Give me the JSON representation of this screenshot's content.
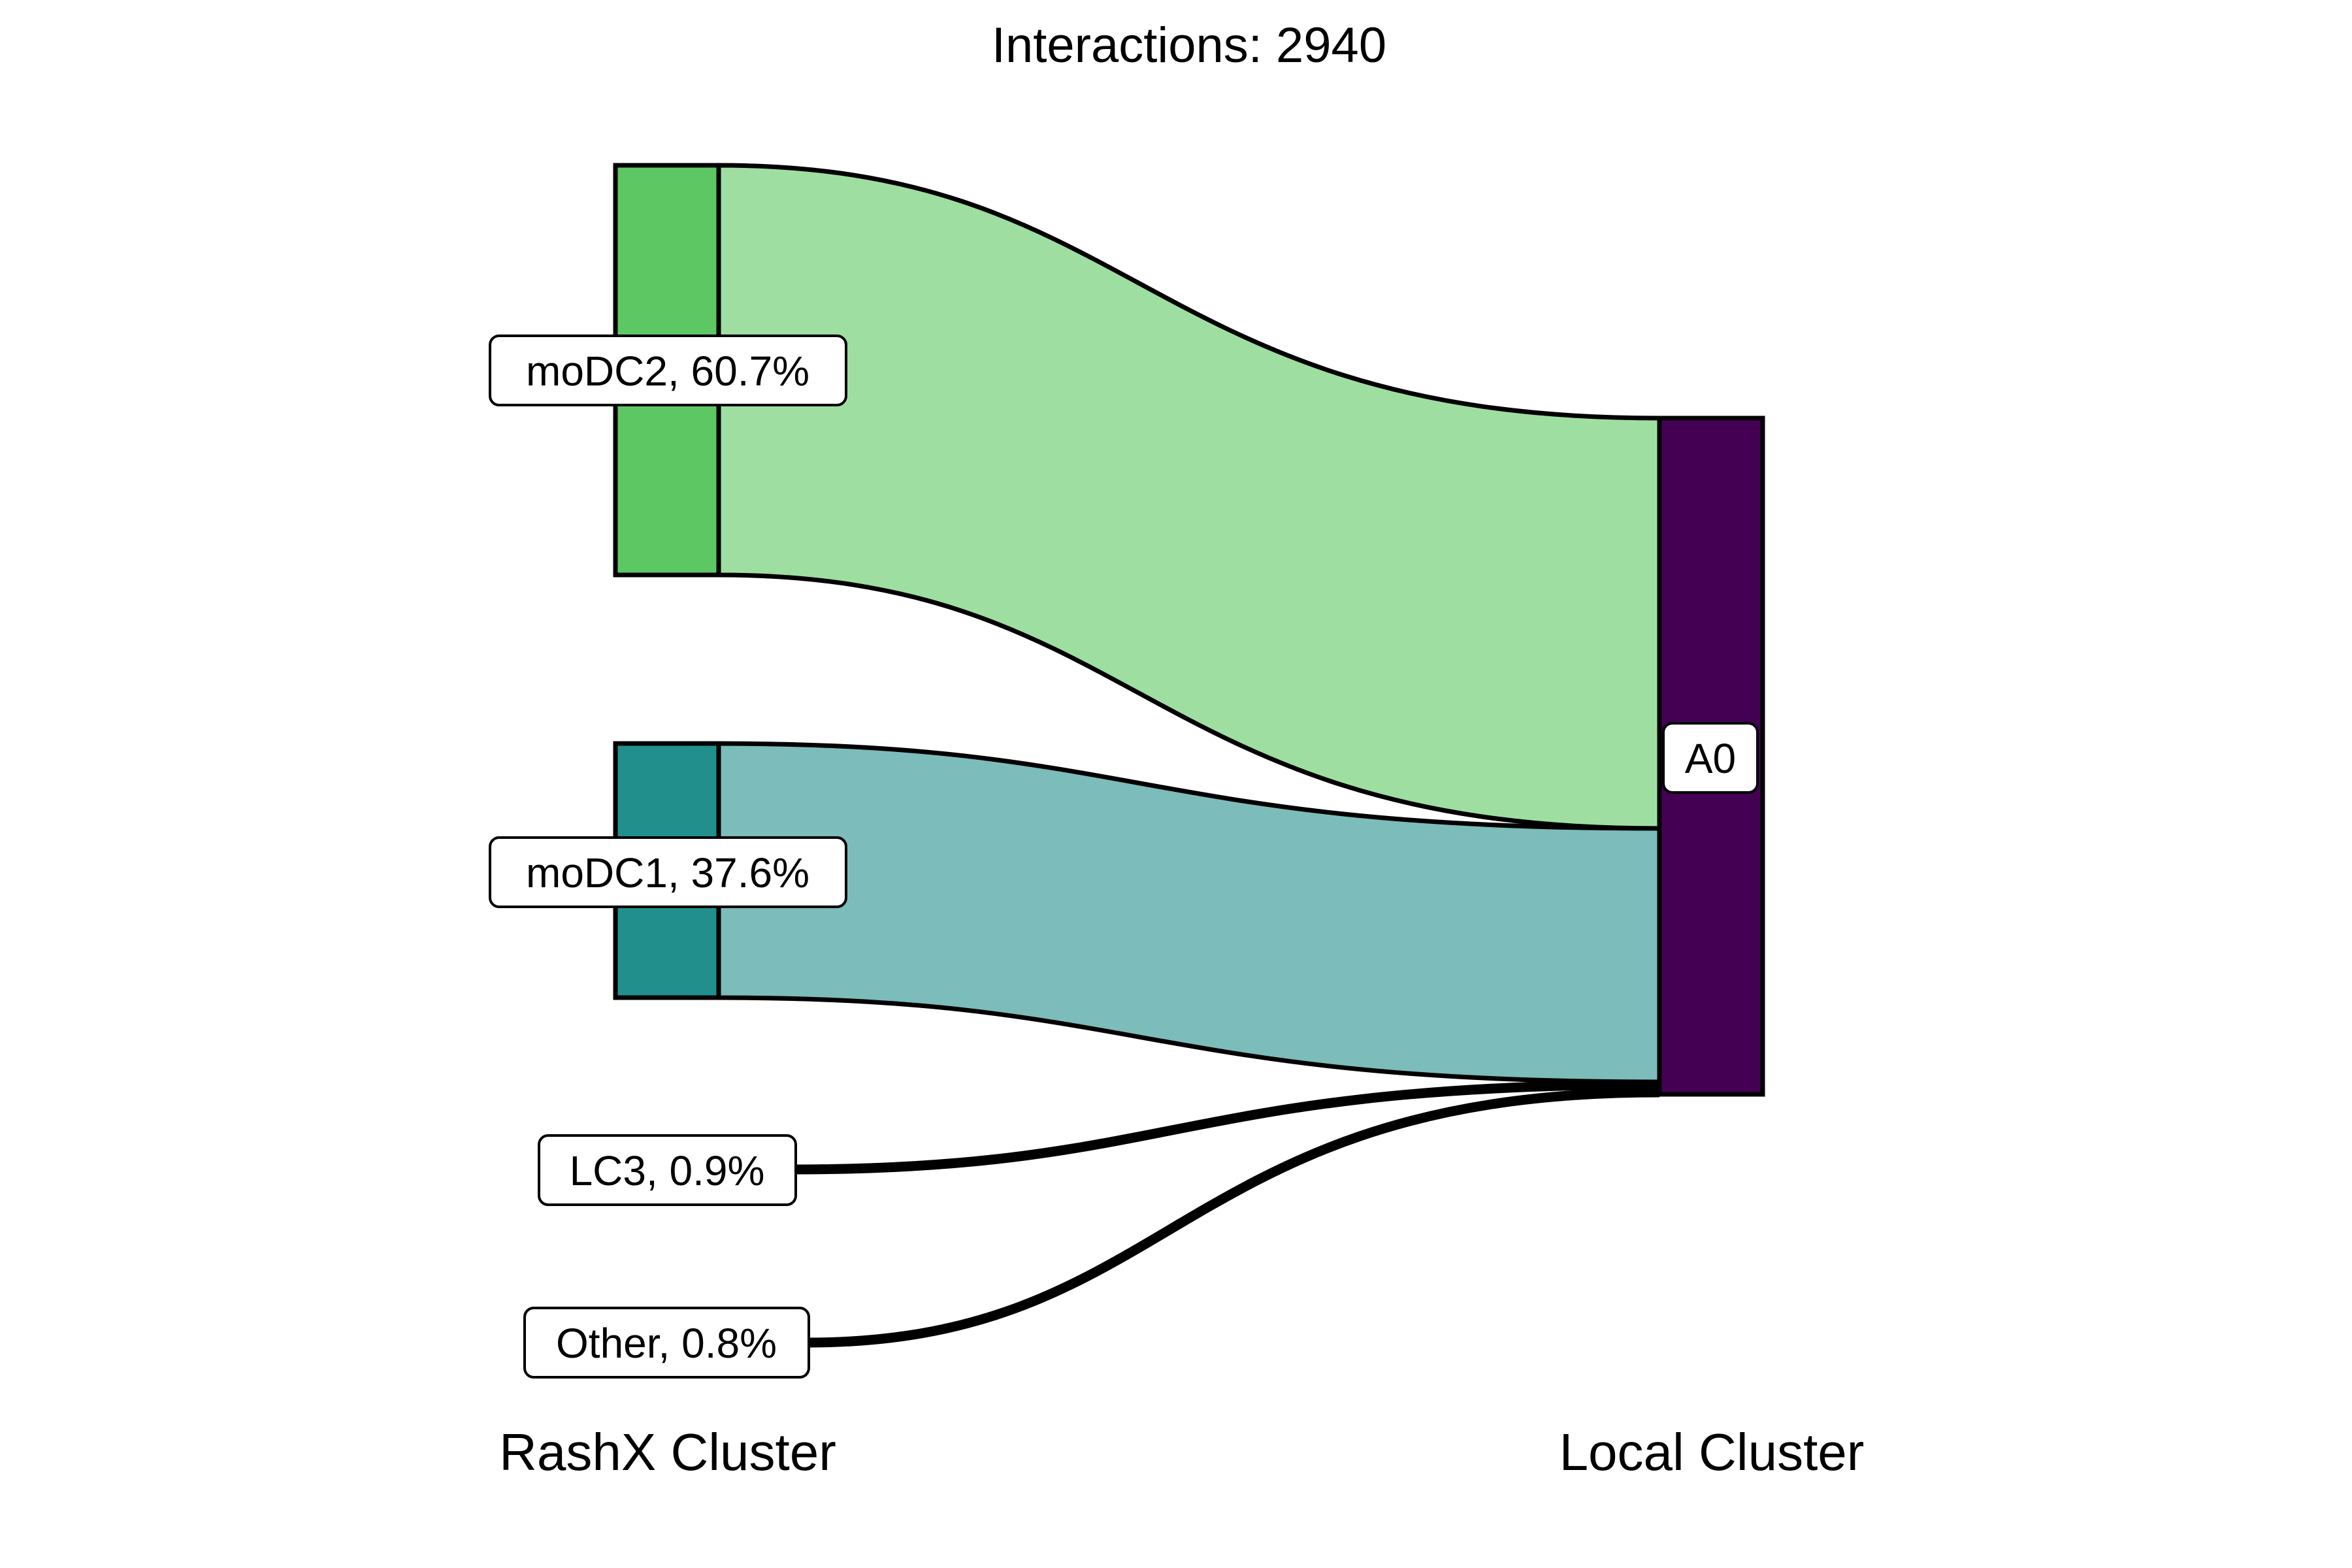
{
  "title": "Interactions: 2940",
  "axis_labels": {
    "left": "RashX Cluster",
    "right": "Local Cluster"
  },
  "colors": {
    "moDC2_node": "#5DC863",
    "moDC2_flow": "#9EDFA1",
    "moDC1_node": "#21908C",
    "moDC1_flow": "#7CBCBB",
    "A0_node": "#440154",
    "outline": "#000000"
  },
  "chart_data": {
    "type": "sankey",
    "total_interactions": 2940,
    "sources": [
      {
        "name": "moDC2",
        "percent": 60.7,
        "label": "moDC2, 60.7%"
      },
      {
        "name": "moDC1",
        "percent": 37.6,
        "label": "moDC1, 37.6%"
      },
      {
        "name": "LC3",
        "percent": 0.9,
        "label": "LC3, 0.9%"
      },
      {
        "name": "Other",
        "percent": 0.8,
        "label": "Other, 0.8%"
      }
    ],
    "targets": [
      {
        "name": "A0",
        "label": "A0"
      }
    ],
    "flows": [
      {
        "from": "moDC2",
        "to": "A0",
        "percent": 60.7
      },
      {
        "from": "moDC1",
        "to": "A0",
        "percent": 37.6
      },
      {
        "from": "LC3",
        "to": "A0",
        "percent": 0.9
      },
      {
        "from": "Other",
        "to": "A0",
        "percent": 0.8
      }
    ]
  }
}
